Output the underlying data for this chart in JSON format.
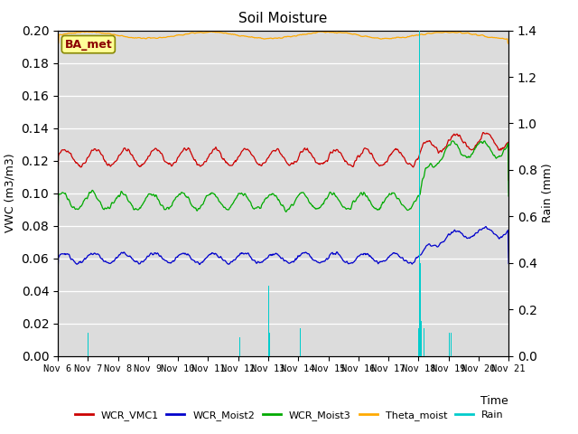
{
  "title": "Soil Moisture",
  "xlabel": "Time",
  "ylabel_left": "VWC (m3/m3)",
  "ylabel_right": "Rain (mm)",
  "ylim_left": [
    0.0,
    0.2
  ],
  "ylim_right": [
    0.0,
    1.4
  ],
  "bg_color": "#dcdcdc",
  "station_label": "BA_met",
  "legend_entries": [
    "WCR_VMC1",
    "WCR_Moist2",
    "WCR_Moist3",
    "Theta_moist",
    "Rain"
  ],
  "line_colors": [
    "#cc0000",
    "#0000cc",
    "#00aa00",
    "#ffaa00",
    "#00cccc"
  ],
  "xtick_labels": [
    "Nov 6",
    "Nov 7",
    "Nov 8",
    "Nov 9",
    "Nov 10",
    "Nov 11",
    "Nov 12",
    "Nov 13",
    "Nov 14",
    "Nov 15",
    "Nov 16",
    "Nov 17",
    "Nov 18",
    "Nov 19",
    "Nov 20",
    "Nov 21"
  ],
  "n_days": 15,
  "pts_per_day": 48
}
